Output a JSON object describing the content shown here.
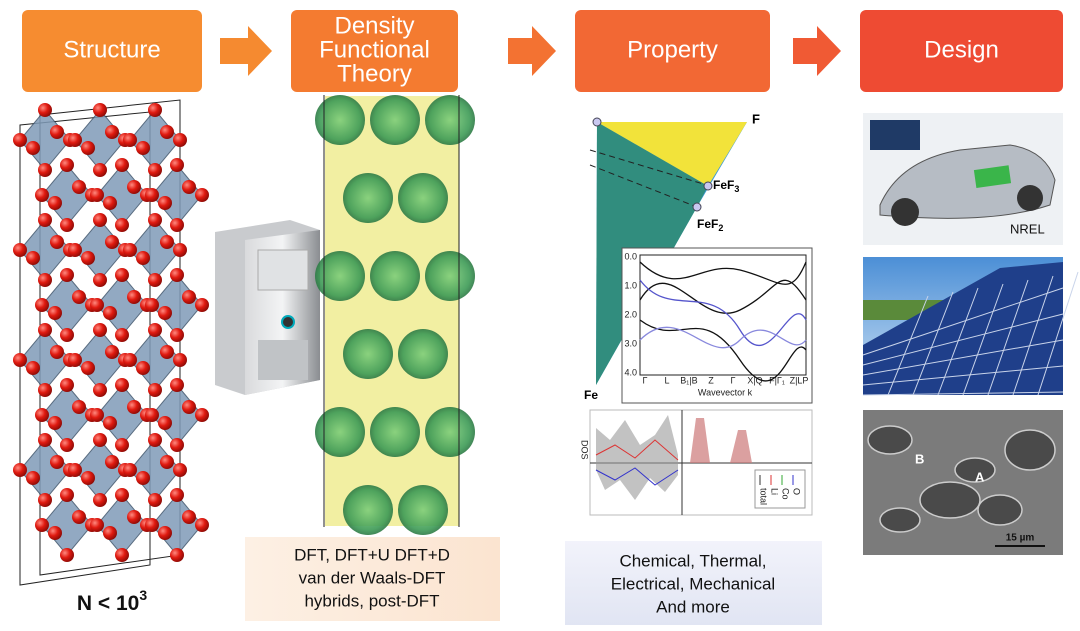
{
  "steps": [
    {
      "lines": [
        "Structure"
      ]
    },
    {
      "lines": [
        "Density",
        "Functional",
        "Theory"
      ]
    },
    {
      "lines": [
        "Property"
      ]
    },
    {
      "lines": [
        "Design"
      ]
    }
  ],
  "structure_caption": {
    "text": "N < 10",
    "superscript": "3"
  },
  "dft_methods": [
    "DFT, DFT+U DFT+D",
    "van der Waals-DFT",
    "hybrids, post-DFT"
  ],
  "properties": [
    "Chemical, Thermal,",
    "Electrical, Mechanical",
    "And more"
  ],
  "phase_diagram": {
    "top": "F",
    "feF3": {
      "text": "FeF",
      "sub": "3"
    },
    "feF2": {
      "text": "FeF",
      "sub": "2"
    },
    "bottom": "Fe"
  },
  "band_plot": {
    "yticks": [
      "0.0",
      "1.0",
      "2.0",
      "3.0",
      "4.0"
    ],
    "xticks": [
      "Γ",
      "L",
      "B₁|B",
      "Z",
      "Γ",
      "X|Q",
      "F|Γ₁",
      "Z|LP"
    ],
    "xlabel": "Wavevector k"
  },
  "dos_plot": {
    "ylabel": "DOS",
    "legend": [
      "total",
      "Li",
      "Co",
      "O"
    ]
  },
  "design": {
    "car_credit": "NREL",
    "sem_labels": [
      "B",
      "A"
    ],
    "scale_bar": "15 µm"
  }
}
